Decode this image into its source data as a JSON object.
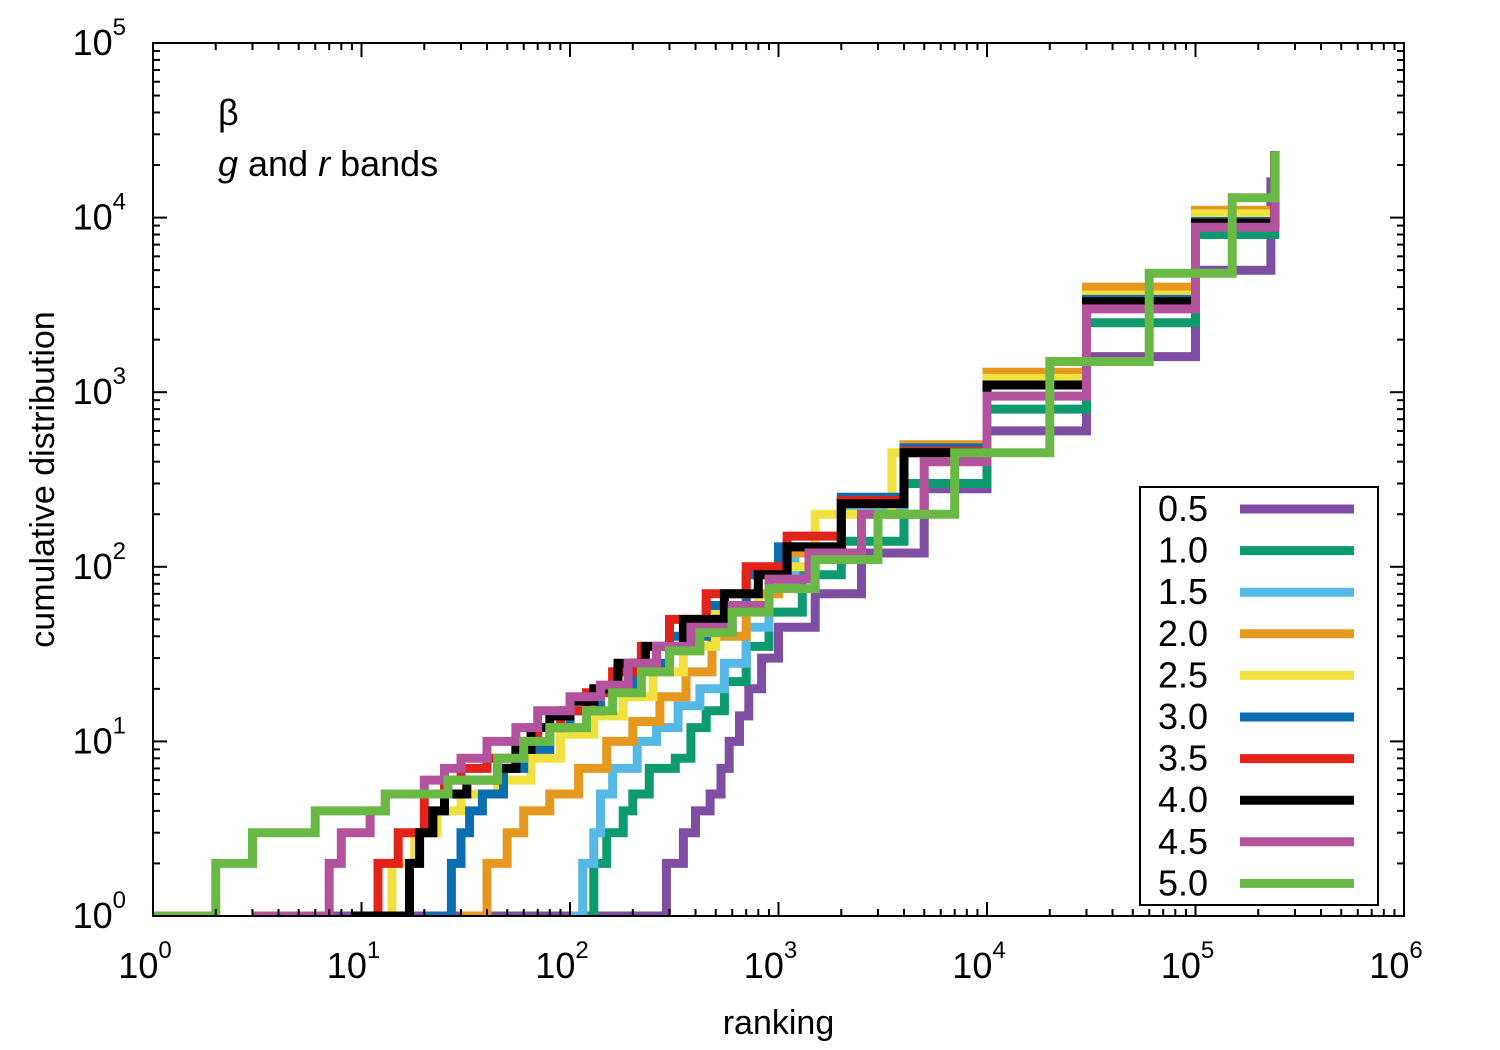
{
  "chart_data": {
    "type": "line",
    "x_scale": "log",
    "y_scale": "log",
    "xlim": [
      1,
      1000000
    ],
    "ylim": [
      1,
      100000
    ],
    "xlabel": "ranking",
    "ylabel": "cumulative distribution",
    "annotation_symbol": "β",
    "annotation_parts": [
      "g",
      " and ",
      "r",
      " bands"
    ],
    "x_ticks": [
      {
        "base": "10",
        "exp": "0"
      },
      {
        "base": "10",
        "exp": "1"
      },
      {
        "base": "10",
        "exp": "2"
      },
      {
        "base": "10",
        "exp": "3"
      },
      {
        "base": "10",
        "exp": "4"
      },
      {
        "base": "10",
        "exp": "5"
      },
      {
        "base": "10",
        "exp": "6"
      }
    ],
    "y_ticks": [
      {
        "base": "10",
        "exp": "0"
      },
      {
        "base": "10",
        "exp": "1"
      },
      {
        "base": "10",
        "exp": "2"
      },
      {
        "base": "10",
        "exp": "3"
      },
      {
        "base": "10",
        "exp": "4"
      },
      {
        "base": "10",
        "exp": "5"
      }
    ],
    "legend_position": "bottom-right",
    "grid": false,
    "series": [
      {
        "name": "0.5",
        "color": "#7f4ea3",
        "points": [
          [
            3,
            1
          ],
          [
            290,
            1
          ],
          [
            290,
            2
          ],
          [
            350,
            3
          ],
          [
            400,
            4
          ],
          [
            470,
            5
          ],
          [
            530,
            7
          ],
          [
            580,
            10
          ],
          [
            650,
            14
          ],
          [
            720,
            20
          ],
          [
            830,
            30
          ],
          [
            1000,
            45
          ],
          [
            1500,
            70
          ],
          [
            2500,
            120
          ],
          [
            5000,
            280
          ],
          [
            10000,
            600
          ],
          [
            30000,
            1600
          ],
          [
            100000,
            5000
          ],
          [
            230000,
            17000
          ]
        ]
      },
      {
        "name": "1.0",
        "color": "#0e9a6f",
        "points": [
          [
            100,
            1
          ],
          [
            130,
            1
          ],
          [
            130,
            2
          ],
          [
            150,
            3
          ],
          [
            180,
            4
          ],
          [
            200,
            5
          ],
          [
            240,
            7
          ],
          [
            320,
            8
          ],
          [
            380,
            12
          ],
          [
            450,
            15
          ],
          [
            550,
            22
          ],
          [
            700,
            35
          ],
          [
            900,
            55
          ],
          [
            1300,
            90
          ],
          [
            2000,
            140
          ],
          [
            4000,
            300
          ],
          [
            10000,
            800
          ],
          [
            30000,
            2500
          ],
          [
            100000,
            8000
          ],
          [
            240000,
            24000
          ]
        ]
      },
      {
        "name": "1.5",
        "color": "#55b8e6",
        "points": [
          [
            100,
            1
          ],
          [
            115,
            1
          ],
          [
            115,
            2
          ],
          [
            130,
            3
          ],
          [
            140,
            5
          ],
          [
            160,
            7
          ],
          [
            210,
            10
          ],
          [
            260,
            12
          ],
          [
            330,
            16
          ],
          [
            420,
            20
          ],
          [
            550,
            28
          ],
          [
            700,
            45
          ],
          [
            900,
            80
          ],
          [
            1200,
            120
          ],
          [
            2000,
            220
          ],
          [
            4000,
            450
          ],
          [
            10000,
            1200
          ],
          [
            30000,
            3500
          ],
          [
            100000,
            10000
          ],
          [
            240000,
            24000
          ]
        ]
      },
      {
        "name": "2.0",
        "color": "#e6981e",
        "points": [
          [
            30,
            1
          ],
          [
            40,
            1
          ],
          [
            40,
            2
          ],
          [
            50,
            3
          ],
          [
            60,
            4
          ],
          [
            80,
            5
          ],
          [
            110,
            7
          ],
          [
            150,
            10
          ],
          [
            200,
            13
          ],
          [
            270,
            18
          ],
          [
            360,
            25
          ],
          [
            480,
            40
          ],
          [
            700,
            70
          ],
          [
            1000,
            120
          ],
          [
            2000,
            230
          ],
          [
            4000,
            500
          ],
          [
            10000,
            1300
          ],
          [
            30000,
            4000
          ],
          [
            100000,
            11000
          ],
          [
            240000,
            24000
          ]
        ]
      },
      {
        "name": "2.5",
        "color": "#f0e040",
        "points": [
          [
            12,
            1
          ],
          [
            14,
            1
          ],
          [
            14,
            2
          ],
          [
            18,
            3
          ],
          [
            23,
            4
          ],
          [
            30,
            5
          ],
          [
            45,
            6
          ],
          [
            65,
            8
          ],
          [
            90,
            11
          ],
          [
            130,
            14
          ],
          [
            180,
            18
          ],
          [
            250,
            25
          ],
          [
            350,
            35
          ],
          [
            500,
            55
          ],
          [
            800,
            100
          ],
          [
            1500,
            200
          ],
          [
            3500,
            450
          ],
          [
            10000,
            1200
          ],
          [
            30000,
            3600
          ],
          [
            100000,
            10500
          ],
          [
            240000,
            24000
          ]
        ]
      },
      {
        "name": "3.0",
        "color": "#0a6eb0",
        "points": [
          [
            20,
            1
          ],
          [
            27,
            1
          ],
          [
            27,
            2
          ],
          [
            30,
            3
          ],
          [
            33,
            4
          ],
          [
            38,
            5
          ],
          [
            48,
            7
          ],
          [
            60,
            9
          ],
          [
            80,
            12
          ],
          [
            100,
            15
          ],
          [
            140,
            20
          ],
          [
            200,
            28
          ],
          [
            300,
            40
          ],
          [
            450,
            60
          ],
          [
            700,
            90
          ],
          [
            1000,
            130
          ],
          [
            2000,
            250
          ],
          [
            4000,
            480
          ],
          [
            10000,
            1100
          ],
          [
            30000,
            3400
          ],
          [
            100000,
            9500
          ],
          [
            240000,
            24000
          ]
        ]
      },
      {
        "name": "3.5",
        "color": "#e2231a",
        "points": [
          [
            9,
            1
          ],
          [
            12,
            1
          ],
          [
            12,
            2
          ],
          [
            15,
            3
          ],
          [
            20,
            5
          ],
          [
            25,
            6
          ],
          [
            30,
            7
          ],
          [
            40,
            8
          ],
          [
            55,
            10
          ],
          [
            70,
            12
          ],
          [
            90,
            15
          ],
          [
            120,
            19
          ],
          [
            160,
            25
          ],
          [
            220,
            35
          ],
          [
            300,
            50
          ],
          [
            450,
            70
          ],
          [
            700,
            100
          ],
          [
            1100,
            150
          ],
          [
            2000,
            240
          ],
          [
            4000,
            460
          ],
          [
            10000,
            1100
          ],
          [
            30000,
            3300
          ],
          [
            100000,
            9300
          ],
          [
            240000,
            24000
          ]
        ]
      },
      {
        "name": "4.0",
        "color": "#000000",
        "points": [
          [
            9,
            1
          ],
          [
            17,
            1
          ],
          [
            17,
            2
          ],
          [
            19,
            3
          ],
          [
            22,
            4
          ],
          [
            25,
            5
          ],
          [
            32,
            6
          ],
          [
            45,
            7
          ],
          [
            55,
            9
          ],
          [
            65,
            12
          ],
          [
            80,
            14
          ],
          [
            100,
            17
          ],
          [
            130,
            20
          ],
          [
            170,
            28
          ],
          [
            230,
            35
          ],
          [
            350,
            50
          ],
          [
            550,
            70
          ],
          [
            800,
            90
          ],
          [
            1100,
            130
          ],
          [
            2000,
            230
          ],
          [
            4000,
            450
          ],
          [
            10000,
            1100
          ],
          [
            30000,
            3300
          ],
          [
            100000,
            9300
          ],
          [
            240000,
            24000
          ]
        ]
      },
      {
        "name": "4.5",
        "color": "#b3539d",
        "points": [
          [
            3,
            1
          ],
          [
            7,
            1
          ],
          [
            7,
            2
          ],
          [
            8,
            3
          ],
          [
            11,
            4
          ],
          [
            13,
            5
          ],
          [
            20,
            6
          ],
          [
            25,
            7
          ],
          [
            30,
            8
          ],
          [
            40,
            10
          ],
          [
            55,
            12
          ],
          [
            70,
            15
          ],
          [
            100,
            18
          ],
          [
            140,
            21
          ],
          [
            190,
            28
          ],
          [
            260,
            35
          ],
          [
            380,
            45
          ],
          [
            600,
            60
          ],
          [
            900,
            85
          ],
          [
            1400,
            120
          ],
          [
            2500,
            200
          ],
          [
            5000,
            400
          ],
          [
            10000,
            950
          ],
          [
            30000,
            3000
          ],
          [
            100000,
            8800
          ],
          [
            240000,
            24000
          ]
        ]
      },
      {
        "name": "5.0",
        "color": "#6ab946",
        "points": [
          [
            1,
            1
          ],
          [
            2,
            1
          ],
          [
            2,
            2
          ],
          [
            3,
            3
          ],
          [
            6,
            3
          ],
          [
            6,
            4
          ],
          [
            11,
            4
          ],
          [
            13,
            5
          ],
          [
            24,
            5
          ],
          [
            26,
            6
          ],
          [
            40,
            6
          ],
          [
            45,
            8
          ],
          [
            60,
            10
          ],
          [
            80,
            12
          ],
          [
            120,
            15
          ],
          [
            160,
            19
          ],
          [
            220,
            25
          ],
          [
            300,
            33
          ],
          [
            420,
            42
          ],
          [
            600,
            55
          ],
          [
            900,
            75
          ],
          [
            1500,
            110
          ],
          [
            3000,
            200
          ],
          [
            7000,
            450
          ],
          [
            20000,
            1500
          ],
          [
            60000,
            4800
          ],
          [
            150000,
            13000
          ],
          [
            240000,
            24000
          ]
        ]
      }
    ]
  }
}
